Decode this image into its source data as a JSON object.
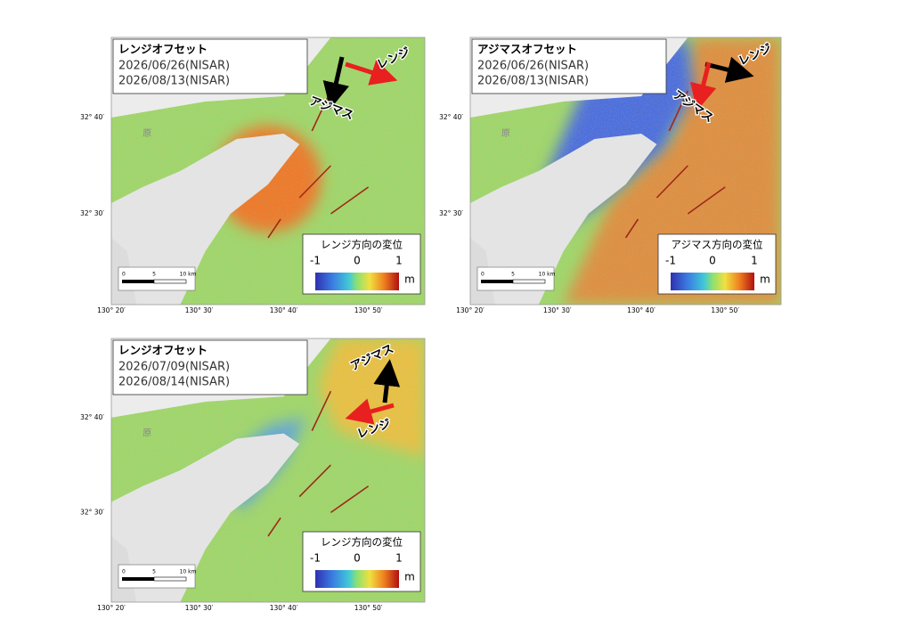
{
  "panels": [
    {
      "title": "レンジオフセット",
      "dates": [
        "2026/06/26(NISAR)",
        "2026/08/13(NISAR)"
      ],
      "arrows": {
        "range": "レンジ",
        "azimuth": "アジマス"
      },
      "legend": {
        "title": "レンジ方向の変位",
        "ticks": [
          -1,
          0,
          1
        ],
        "unit": "m"
      },
      "lat_labels": [
        "32° 40′",
        "32° 30′"
      ],
      "lon_labels": [
        "130° 20′",
        "130° 30′",
        "130° 40′",
        "130° 50′"
      ],
      "scale_labels": [
        "0",
        "5",
        "10 km"
      ],
      "place_label": "原"
    },
    {
      "title": "アジマスオフセット",
      "dates": [
        "2026/06/26(NISAR)",
        "2026/08/13(NISAR)"
      ],
      "arrows": {
        "range": "レンジ",
        "azimuth": "アジマス"
      },
      "legend": {
        "title": "アジマス方向の変位",
        "ticks": [
          -1,
          0,
          1
        ],
        "unit": "m"
      },
      "lat_labels": [
        "32° 40′",
        "32° 30′"
      ],
      "lon_labels": [
        "130° 20′",
        "130° 30′",
        "130° 40′",
        "130° 50′"
      ],
      "scale_labels": [
        "0",
        "5",
        "10 km"
      ],
      "place_label": "原"
    },
    {
      "title": "レンジオフセット",
      "dates": [
        "2026/07/09(NISAR)",
        "2026/08/14(NISAR)"
      ],
      "arrows": {
        "range": "レンジ",
        "azimuth": "アジマス"
      },
      "legend": {
        "title": "レンジ方向の変位",
        "ticks": [
          -1,
          0,
          1
        ],
        "unit": "m"
      },
      "lat_labels": [
        "32° 40′",
        "32° 30′"
      ],
      "lon_labels": [
        "130° 20′",
        "130° 30′",
        "130° 40′",
        "130° 50′"
      ],
      "scale_labels": [
        "0",
        "5",
        "10 km"
      ],
      "place_label": "原"
    }
  ]
}
